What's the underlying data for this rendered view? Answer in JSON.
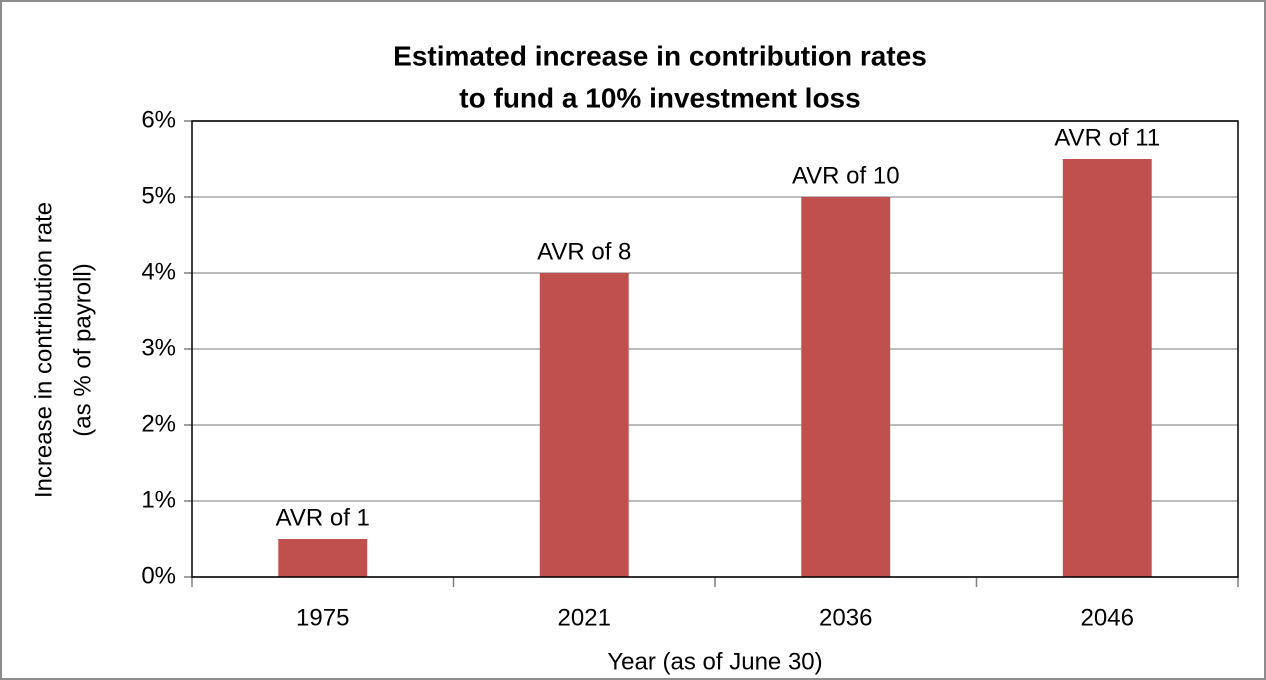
{
  "chart_data": {
    "type": "bar",
    "title": [
      "Estimated increase in contribution rates",
      "to fund a 10% investment loss"
    ],
    "y_label": [
      "Increase in contribution rate",
      "(as % of payroll)"
    ],
    "x_label": "Year (as of June 30)",
    "categories": [
      "1975",
      "2021",
      "2036",
      "2046"
    ],
    "values": [
      0.5,
      4,
      5,
      5.5
    ],
    "bar_labels": [
      "AVR of 1",
      "AVR of 8",
      "AVR of 10",
      "AVR of 11"
    ],
    "color": "#c0504d",
    "ylim": [
      0,
      6
    ],
    "yticks": [
      {
        "value": 0,
        "label": "0%"
      },
      {
        "value": 1,
        "label": "1%"
      },
      {
        "value": 2,
        "label": "2%"
      },
      {
        "value": 3,
        "label": "3%"
      },
      {
        "value": 4,
        "label": "4%"
      },
      {
        "value": 5,
        "label": "5%"
      },
      {
        "value": 6,
        "label": "6%"
      }
    ],
    "grid": true
  }
}
